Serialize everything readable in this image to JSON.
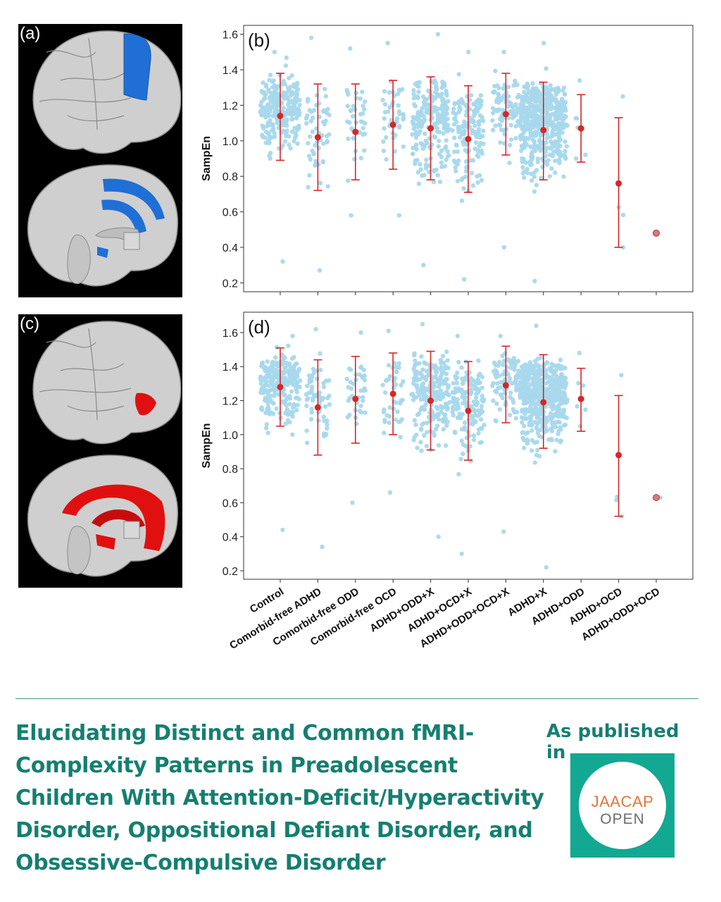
{
  "panels": {
    "a": "(a)",
    "b": "(b)",
    "c": "(c)",
    "d": "(d)"
  },
  "chart_data": [
    {
      "type": "scatter",
      "panel": "(b)",
      "ylabel": "SampEn",
      "ylim": [
        0.15,
        1.65
      ],
      "yticks": [
        "0.2",
        "0.4",
        "0.6",
        "0.8",
        "1.0",
        "1.2",
        "1.4",
        "1.6"
      ],
      "categories": [
        "Control",
        "Comorbid-free ADHD",
        "Comorbid-free ODD",
        "Comorbid-free OCD",
        "ADHD+ODD+X",
        "ADHD+OCD+X",
        "ADHD+ODD+OCD+X",
        "ADHD+X",
        "ADHD+ODD",
        "ADHD+OCD",
        "ADHD+ODD+OCD"
      ],
      "mean": [
        1.14,
        1.02,
        1.05,
        1.09,
        1.07,
        1.01,
        1.15,
        1.06,
        1.07,
        0.76,
        0.48
      ],
      "err_low": [
        0.89,
        0.72,
        0.78,
        0.84,
        0.78,
        0.71,
        0.92,
        0.78,
        0.88,
        0.4,
        null
      ],
      "err_high": [
        1.38,
        1.32,
        1.32,
        1.34,
        1.36,
        1.31,
        1.38,
        1.33,
        1.26,
        1.13,
        null
      ],
      "point_min": [
        0.32,
        0.27,
        0.58,
        0.58,
        0.3,
        0.22,
        0.4,
        0.21,
        0.9,
        0.4,
        0.48
      ],
      "point_max": [
        1.5,
        1.58,
        1.52,
        1.55,
        1.6,
        1.5,
        1.5,
        1.55,
        1.34,
        1.25,
        0.48
      ],
      "point_count": [
        260,
        60,
        40,
        45,
        230,
        150,
        90,
        500,
        6,
        4,
        1
      ],
      "point_color": "#a8d8ec",
      "mean_color": "#d62728"
    },
    {
      "type": "scatter",
      "panel": "(d)",
      "ylabel": "SampEn",
      "ylim": [
        0.15,
        1.72
      ],
      "yticks": [
        "0.2",
        "0.4",
        "0.6",
        "0.8",
        "1.0",
        "1.2",
        "1.4",
        "1.6"
      ],
      "categories": [
        "Control",
        "Comorbid-free ADHD",
        "Comorbid-free ODD",
        "Comorbid-free OCD",
        "ADHD+ODD+X",
        "ADHD+OCD+X",
        "ADHD+ODD+OCD+X",
        "ADHD+X",
        "ADHD+ODD",
        "ADHD+OCD",
        "ADHD+ODD+OCD"
      ],
      "mean": [
        1.28,
        1.16,
        1.21,
        1.24,
        1.2,
        1.14,
        1.29,
        1.19,
        1.21,
        0.88,
        0.63
      ],
      "err_low": [
        1.05,
        0.88,
        0.95,
        1.0,
        0.91,
        0.85,
        1.07,
        0.92,
        1.02,
        0.52,
        null
      ],
      "err_high": [
        1.51,
        1.44,
        1.46,
        1.48,
        1.49,
        1.43,
        1.52,
        1.47,
        1.39,
        1.23,
        null
      ],
      "point_min": [
        0.44,
        0.34,
        0.6,
        0.66,
        0.4,
        0.3,
        0.43,
        0.22,
        1.05,
        0.52,
        0.63
      ],
      "point_max": [
        1.58,
        1.62,
        1.6,
        1.61,
        1.65,
        1.58,
        1.58,
        1.64,
        1.48,
        1.35,
        0.63
      ],
      "point_count": [
        260,
        60,
        40,
        45,
        230,
        150,
        90,
        500,
        6,
        4,
        1
      ],
      "point_color": "#a8d8ec",
      "mean_color": "#d62728"
    }
  ],
  "colors": {
    "region_blue": "#1f6fd6",
    "region_red": "#e01010",
    "brand_green": "#157f70",
    "logo_bg": "#13a892"
  },
  "footer": {
    "title": "Elucidating Distinct and Common fMRI-Complexity Patterns in Preadolescent Children With Attention-Deficit/Hyperactivity Disorder, Oppositional Defiant Disorder, and Obsessive-Compulsive Disorder",
    "published_label": "As published in",
    "logo_line1": "JAACAP",
    "logo_line2": "OPEN"
  }
}
